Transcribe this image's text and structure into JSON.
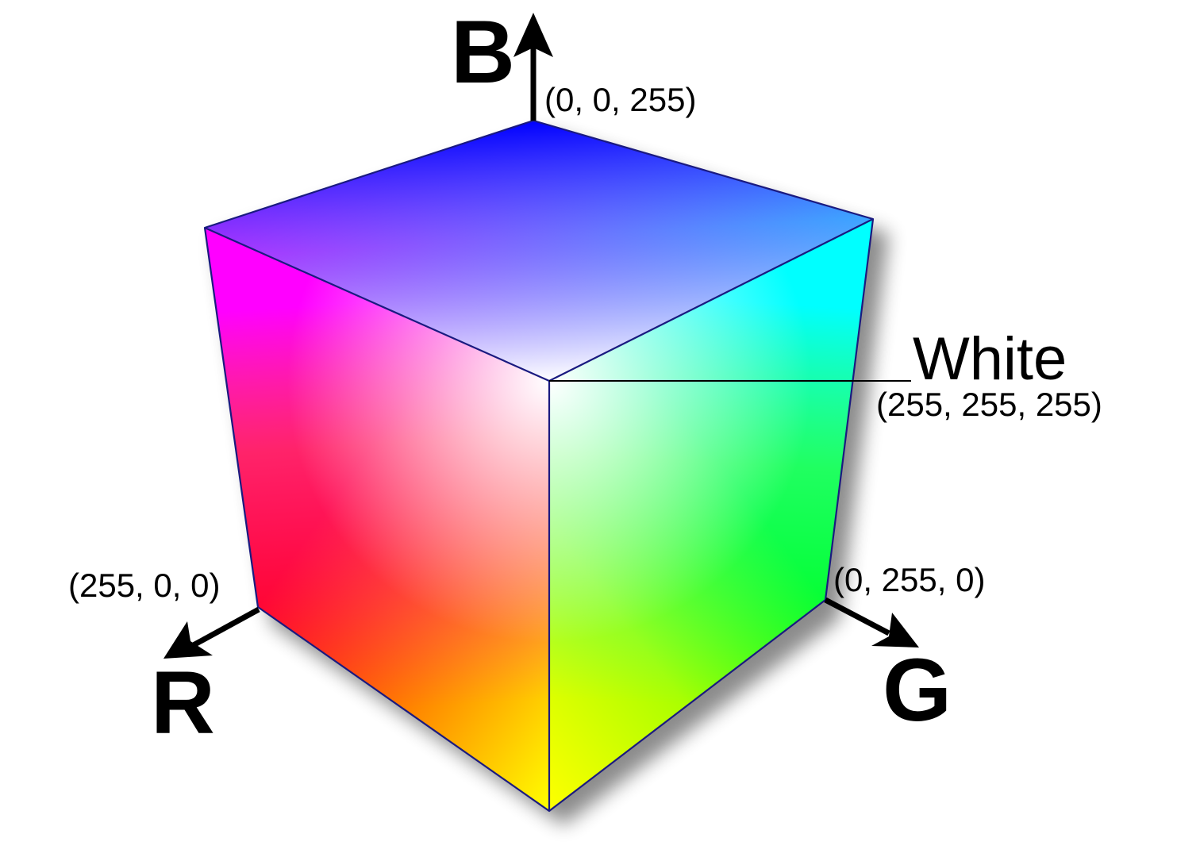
{
  "axes": {
    "r": {
      "letter": "R",
      "color": "#ff0000"
    },
    "g": {
      "letter": "G",
      "color": "#00ff00"
    },
    "b": {
      "letter": "B",
      "color": "#0000ff"
    }
  },
  "vertices": {
    "blue": {
      "label": "(0, 0, 255)",
      "color": "#0000ff"
    },
    "red": {
      "label": "(255, 0, 0)",
      "color": "#ff0000"
    },
    "green": {
      "label": "(0, 255, 0)",
      "color": "#00ff00"
    },
    "white": {
      "name": "White",
      "label": "(255, 255, 255)",
      "color": "#ffffff"
    },
    "magenta": {
      "color": "#ff00ff"
    },
    "cyan": {
      "color": "#00ffff"
    },
    "yellow": {
      "color": "#ffff00"
    }
  },
  "edge_color": "#1a1a80"
}
